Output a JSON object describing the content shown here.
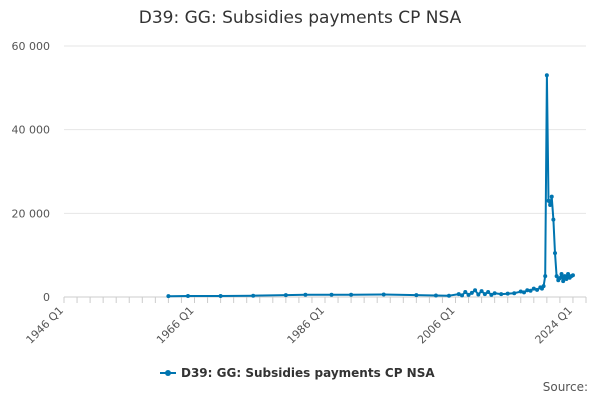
{
  "title": "D39: GG: Subsidies payments CP NSA",
  "source_label": "Source:",
  "colors": {
    "series": "#0075b0",
    "grid": "#e6e6e6",
    "axis": "#cccccc"
  },
  "chart_data": {
    "type": "line",
    "title": "D39: GG: Subsidies payments CP NSA",
    "xlabel": "",
    "ylabel": "",
    "x_range": [
      1946,
      2026
    ],
    "ylim": [
      0,
      60000
    ],
    "yticks": [
      0,
      20000,
      40000,
      60000
    ],
    "ytick_labels": [
      "0",
      "20 000",
      "40 000",
      "60 000"
    ],
    "xticks": [
      1946,
      1966,
      1986,
      2006,
      2024
    ],
    "xtick_labels": [
      "1946 Q1",
      "1966 Q1",
      "1986 Q1",
      "2006 Q1",
      "2024 Q1"
    ],
    "grid": "horizontal",
    "legend": "bottom",
    "series": [
      {
        "name": "D39: GG: Subsidies payments CP NSA",
        "x": [
          1962.0,
          1965.0,
          1970.0,
          1975.0,
          1980.0,
          1983.0,
          1987.0,
          1990.0,
          1995.0,
          2000.0,
          2003.0,
          2005.0,
          2006.5,
          2007.0,
          2007.5,
          2008.0,
          2008.5,
          2009.0,
          2009.5,
          2010.0,
          2010.5,
          2011.0,
          2011.5,
          2012.0,
          2013.0,
          2014.0,
          2015.0,
          2016.0,
          2016.5,
          2017.0,
          2017.5,
          2018.0,
          2018.5,
          2019.0,
          2019.25,
          2019.5,
          2019.75,
          2020.0,
          2020.25,
          2020.5,
          2020.75,
          2021.0,
          2021.25,
          2021.5,
          2021.75,
          2022.0,
          2022.25,
          2022.5,
          2022.75,
          2023.0,
          2023.25,
          2023.5,
          2023.75,
          2024.0
        ],
        "values": [
          200,
          250,
          250,
          300,
          450,
          550,
          550,
          550,
          600,
          450,
          350,
          300,
          700,
          400,
          1200,
          500,
          1000,
          1600,
          600,
          1400,
          700,
          1200,
          500,
          900,
          700,
          800,
          900,
          1300,
          1100,
          1600,
          1500,
          2000,
          1700,
          2300,
          2000,
          2600,
          5000,
          53000,
          23000,
          22000,
          24000,
          18500,
          10500,
          5000,
          4000,
          4500,
          5500,
          3800,
          5000,
          4300,
          5500,
          4600,
          5000,
          5200
        ]
      }
    ]
  }
}
